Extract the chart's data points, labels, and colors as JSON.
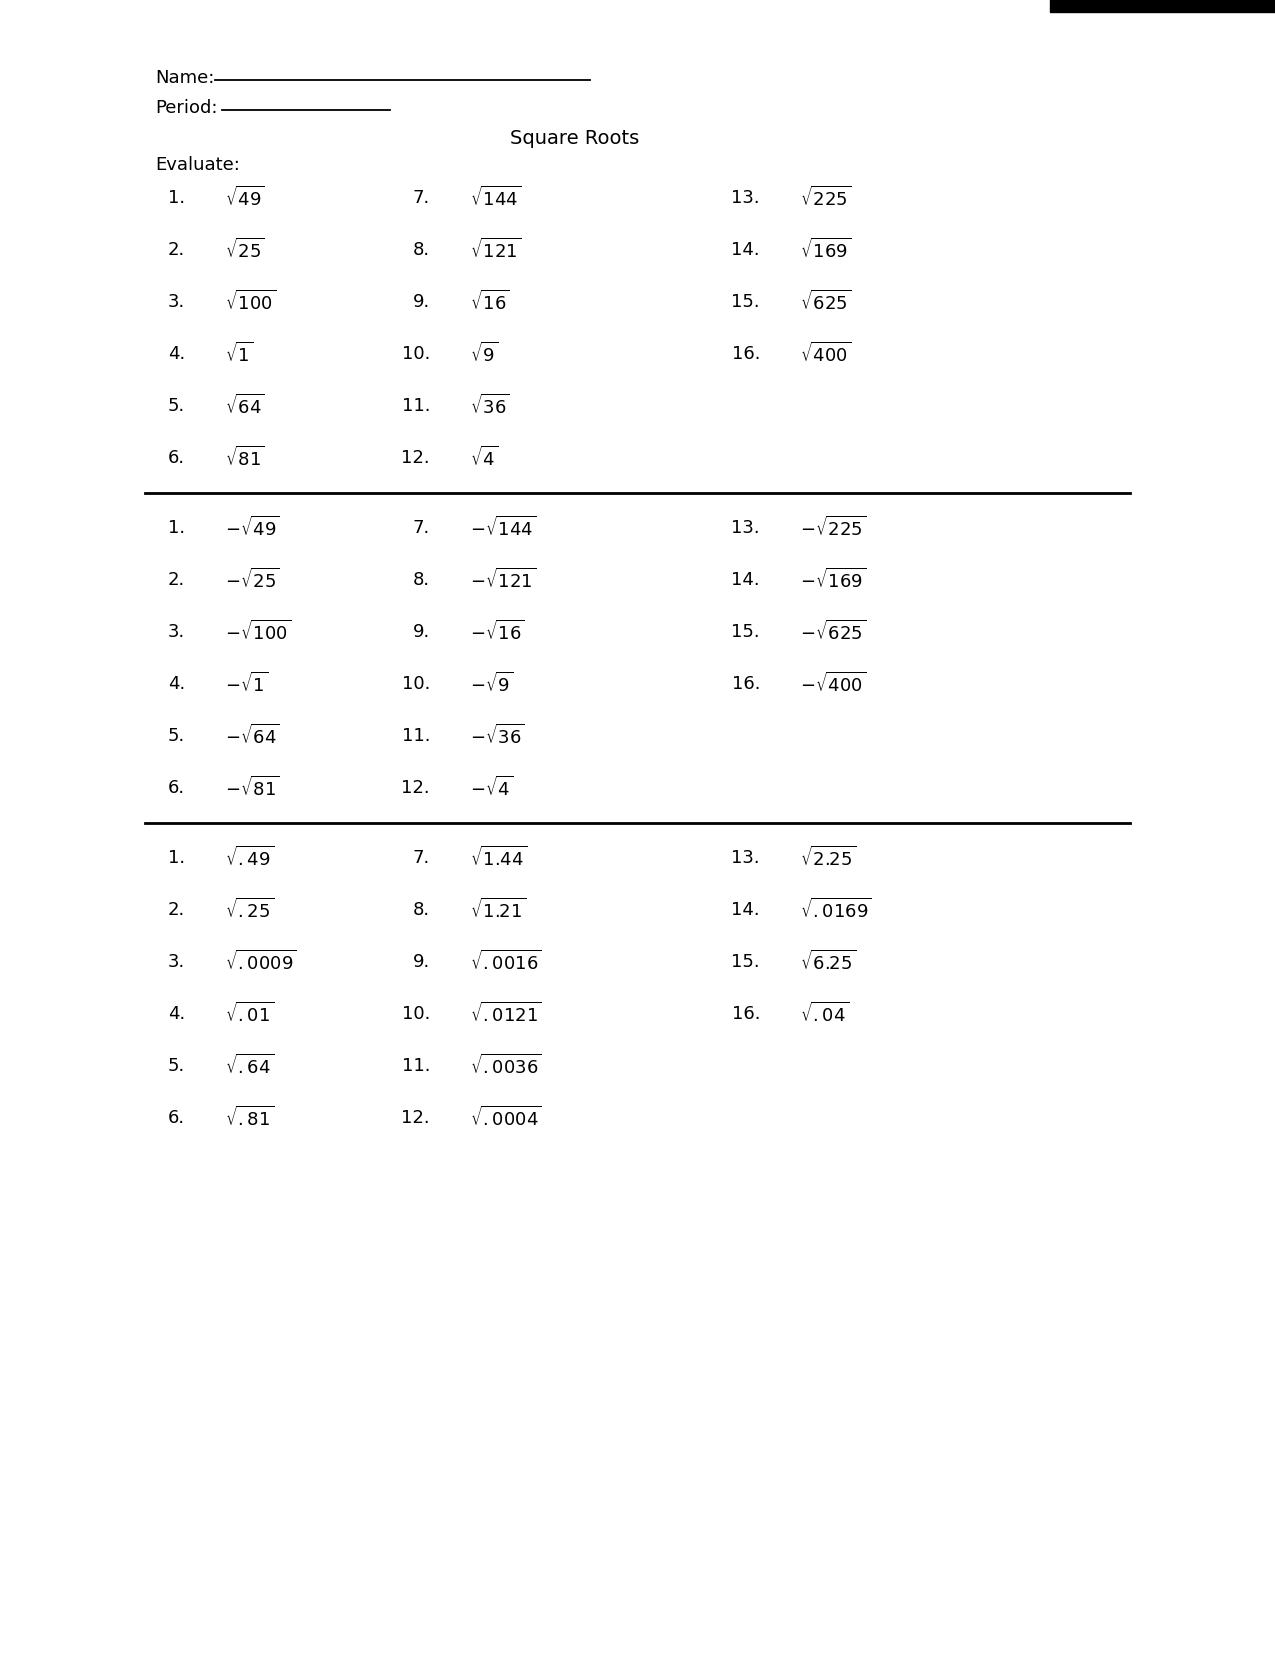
{
  "title": "Square Roots",
  "bg_color": "#ffffff",
  "section1": {
    "label": "Evaluate:",
    "col1": {
      "nums": [
        "1.",
        "2.",
        "3.",
        "4.",
        "5.",
        "6."
      ],
      "exprs": [
        "49",
        "25",
        "100",
        "1",
        "64",
        "81"
      ],
      "prefix": ""
    },
    "col2": {
      "nums": [
        "7.",
        "8.",
        "9.",
        "10.",
        "11.",
        "12."
      ],
      "exprs": [
        "144",
        "121",
        "16",
        "9",
        "36",
        "4"
      ],
      "prefix": ""
    },
    "col3": {
      "nums": [
        "13.",
        "14.",
        "15.",
        "16."
      ],
      "exprs": [
        "225",
        "169",
        "625",
        "400"
      ],
      "prefix": ""
    }
  },
  "section2": {
    "col1": {
      "nums": [
        "1.",
        "2.",
        "3.",
        "4.",
        "5.",
        "6."
      ],
      "exprs": [
        "49",
        "25",
        "100",
        "1",
        "64",
        "81"
      ],
      "prefix": "-"
    },
    "col2": {
      "nums": [
        "7.",
        "8.",
        "9.",
        "10.",
        "11.",
        "12."
      ],
      "exprs": [
        "144",
        "121",
        "16",
        "9",
        "36",
        "4"
      ],
      "prefix": "-"
    },
    "col3": {
      "nums": [
        "13.",
        "14.",
        "15.",
        "16."
      ],
      "exprs": [
        "225",
        "169",
        "625",
        "400"
      ],
      "prefix": "-"
    }
  },
  "section3": {
    "col1": {
      "nums": [
        "1.",
        "2.",
        "3.",
        "4.",
        "5.",
        "6."
      ],
      "exprs": [
        ".49",
        ".25",
        ".0009",
        ".01",
        ".64",
        ".81"
      ],
      "prefix": ""
    },
    "col2": {
      "nums": [
        "7.",
        "8.",
        "9.",
        "10.",
        "11.",
        "12."
      ],
      "exprs": [
        "1.44",
        "1.21",
        ".0016",
        ".0121",
        ".0036",
        ".0004"
      ],
      "prefix": ""
    },
    "col3": {
      "nums": [
        "13.",
        "14.",
        "15.",
        "16."
      ],
      "exprs": [
        "2.25",
        ".0169",
        "6.25",
        ".04"
      ],
      "prefix": ""
    }
  }
}
